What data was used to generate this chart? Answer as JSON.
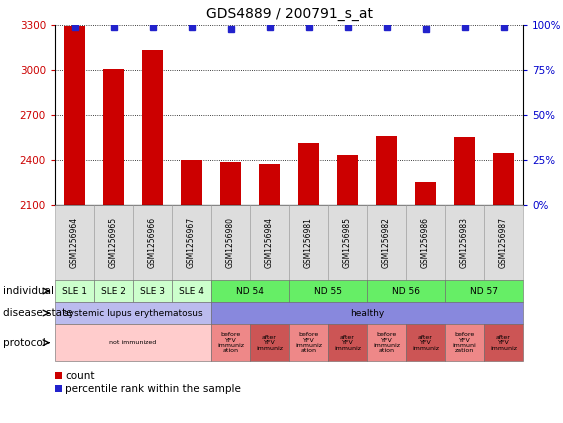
{
  "title": "GDS4889 / 200791_s_at",
  "samples": [
    "GSM1256964",
    "GSM1256965",
    "GSM1256966",
    "GSM1256967",
    "GSM1256980",
    "GSM1256984",
    "GSM1256981",
    "GSM1256985",
    "GSM1256982",
    "GSM1256986",
    "GSM1256983",
    "GSM1256987"
  ],
  "counts": [
    3290,
    3005,
    3130,
    2398,
    2385,
    2370,
    2510,
    2430,
    2560,
    2255,
    2555,
    2445
  ],
  "percentile_ranks": [
    99,
    99,
    99,
    99,
    98,
    99,
    99,
    99,
    99,
    98,
    99,
    99
  ],
  "bar_color": "#cc0000",
  "dot_color": "#2222cc",
  "ylim_left": [
    2100,
    3300
  ],
  "ylim_right": [
    0,
    100
  ],
  "yticks_left": [
    2100,
    2400,
    2700,
    3000,
    3300
  ],
  "yticks_right": [
    0,
    25,
    50,
    75,
    100
  ],
  "yticklabels_right": [
    "0%",
    "25%",
    "50%",
    "75%",
    "100%"
  ],
  "individual_groups": [
    {
      "label": "SLE 1",
      "start": 0,
      "end": 1,
      "color": "#ccffcc"
    },
    {
      "label": "SLE 2",
      "start": 1,
      "end": 2,
      "color": "#ccffcc"
    },
    {
      "label": "SLE 3",
      "start": 2,
      "end": 3,
      "color": "#ccffcc"
    },
    {
      "label": "SLE 4",
      "start": 3,
      "end": 4,
      "color": "#ccffcc"
    },
    {
      "label": "ND 54",
      "start": 4,
      "end": 6,
      "color": "#66ee66"
    },
    {
      "label": "ND 55",
      "start": 6,
      "end": 8,
      "color": "#66ee66"
    },
    {
      "label": "ND 56",
      "start": 8,
      "end": 10,
      "color": "#66ee66"
    },
    {
      "label": "ND 57",
      "start": 10,
      "end": 12,
      "color": "#66ee66"
    }
  ],
  "disease_groups": [
    {
      "label": "systemic lupus erythematosus",
      "start": 0,
      "end": 4,
      "color": "#bbbbee"
    },
    {
      "label": "healthy",
      "start": 4,
      "end": 12,
      "color": "#8888dd"
    }
  ],
  "protocol_groups": [
    {
      "label": "not immunized",
      "start": 0,
      "end": 4,
      "color": "#ffcccc"
    },
    {
      "label": "before\nYFV\nimmuniz\nation",
      "start": 4,
      "end": 5,
      "color": "#ee8888"
    },
    {
      "label": "after\nYFV\nimmuniz",
      "start": 5,
      "end": 6,
      "color": "#cc5555"
    },
    {
      "label": "before\nYFV\nimmuniz\nation",
      "start": 6,
      "end": 7,
      "color": "#ee8888"
    },
    {
      "label": "after\nYFV\nimmuniz",
      "start": 7,
      "end": 8,
      "color": "#cc5555"
    },
    {
      "label": "before\nYFV\nimmuniz\nation",
      "start": 8,
      "end": 9,
      "color": "#ee8888"
    },
    {
      "label": "after\nYFV\nimmuniz",
      "start": 9,
      "end": 10,
      "color": "#cc5555"
    },
    {
      "label": "before\nYFV\nimmuni\nzation",
      "start": 10,
      "end": 11,
      "color": "#ee8888"
    },
    {
      "label": "after\nYFV\nimmuniz",
      "start": 11,
      "end": 12,
      "color": "#cc5555"
    }
  ],
  "row_labels": [
    "individual",
    "disease state",
    "protocol"
  ],
  "tick_color_left": "#cc0000",
  "tick_color_right": "#0000cc"
}
